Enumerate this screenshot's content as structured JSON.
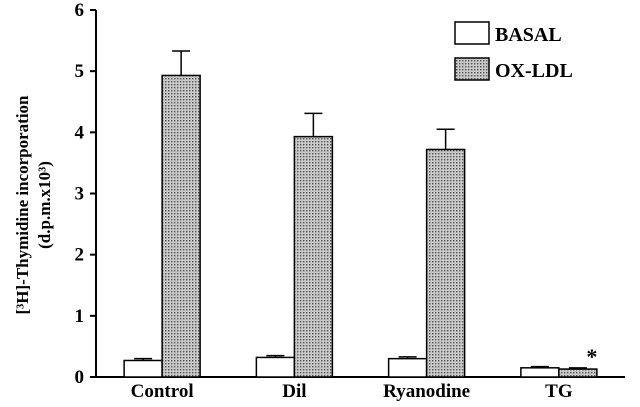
{
  "chart_data": {
    "type": "bar",
    "categories": [
      "Control",
      "Dil",
      "Ryanodine",
      "TG"
    ],
    "series": [
      {
        "name": "BASAL",
        "values": [
          0.27,
          0.32,
          0.3,
          0.15
        ],
        "errors": [
          0.03,
          0.03,
          0.03,
          0.02
        ],
        "color": "#ffffff"
      },
      {
        "name": "OX-LDL",
        "values": [
          4.93,
          3.93,
          3.72,
          0.13
        ],
        "errors": [
          0.4,
          0.38,
          0.33,
          0.02
        ],
        "color": "#b8b8b8"
      }
    ],
    "ylabel_line1": "[³H]-Thymidine incorporation",
    "ylabel_line2": "(d.p.m.x10³)",
    "xlabel": "",
    "ylim": [
      0,
      6
    ],
    "yticks": [
      "0",
      "1",
      "2",
      "3",
      "4",
      "5",
      "6"
    ],
    "legend_position": "top-right",
    "annotations": [
      {
        "category": "TG",
        "series": "OX-LDL",
        "text": "*"
      }
    ],
    "grid": false
  }
}
